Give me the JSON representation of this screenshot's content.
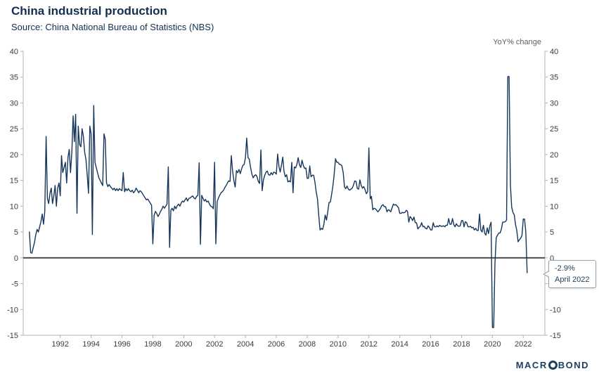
{
  "header": {
    "title": "China industrial production",
    "source": "Source: China National Bureau of Statistics (NBS)"
  },
  "chart": {
    "unit_label": "YoY% change"
  },
  "callout": {
    "value": "-2.9%",
    "date": "April 2022"
  },
  "branding": {
    "logo_left": "MACR",
    "logo_right": "BOND"
  },
  "chart_data": {
    "type": "line",
    "title": "China industrial production",
    "ylabel": "YoY% change",
    "xlabel": "",
    "ylim": [
      -15,
      40
    ],
    "xlim": [
      1989.6,
      2023.4
    ],
    "y_ticks": [
      -15,
      -10,
      -5,
      0,
      5,
      10,
      15,
      20,
      25,
      30,
      35,
      40
    ],
    "x_ticks": [
      1992,
      1994,
      1996,
      1998,
      2000,
      2002,
      2004,
      2006,
      2008,
      2010,
      2012,
      2014,
      2016,
      2018,
      2020,
      2022
    ],
    "grid": false,
    "legend_position": "none",
    "zero_line": true,
    "line_color": "#17365c",
    "zero_line_color": "#4d4d4d",
    "axis_color": "#b3b3b3",
    "series": [
      {
        "name": "China industrial production YoY% change",
        "frequency": "monthly",
        "start_year": 1990,
        "start_month": 1,
        "values": [
          5.0,
          1.0,
          0.9,
          2.0,
          3.0,
          4.5,
          5.5,
          5.0,
          6.0,
          7.0,
          8.5,
          6.5,
          9.0,
          23.5,
          11.5,
          10.5,
          12.5,
          13.5,
          10.5,
          12.0,
          14.0,
          10.0,
          13.5,
          14.5,
          12.0,
          19.8,
          16.5,
          17.5,
          18.5,
          14.5,
          19.5,
          21.0,
          16.5,
          20.5,
          27.5,
          22.5,
          27.8,
          8.6,
          25.5,
          22.0,
          21.5,
          25.0,
          23.5,
          20.5,
          19.0,
          16.0,
          12.5,
          25.5,
          24.0,
          4.5,
          29.5,
          18.5,
          17.5,
          16.5,
          15.5,
          15.0,
          14.5,
          14.0,
          24.0,
          23.0,
          14.5,
          13.8,
          14.2,
          13.8,
          13.5,
          13.2,
          13.5,
          13.0,
          13.4,
          13.0,
          13.4,
          13.2,
          13.0,
          16.5,
          12.8,
          13.4,
          13.0,
          13.4,
          13.0,
          12.8,
          13.1,
          12.6,
          12.9,
          13.5,
          13.1,
          12.6,
          13.0,
          12.8,
          12.4,
          12.0,
          11.6,
          11.2,
          11.4,
          11.0,
          10.6,
          10.2,
          2.7,
          8.2,
          9.0,
          8.6,
          8.0,
          8.4,
          9.0,
          9.4,
          10.0,
          9.6,
          10.0,
          10.4,
          17.6,
          2.0,
          9.2,
          9.6,
          9.1,
          10.0,
          9.5,
          10.1,
          10.4,
          10.0,
          10.6,
          11.0,
          10.8,
          11.2,
          11.6,
          11.0,
          11.5,
          11.6,
          11.8,
          12.0,
          11.6,
          11.4,
          11.9,
          12.1,
          18.4,
          2.6,
          12.1,
          11.5,
          11.0,
          11.3,
          10.8,
          11.0,
          10.4,
          10.0,
          9.9,
          9.5,
          18.5,
          2.7,
          10.9,
          11.6,
          12.1,
          12.6,
          12.8,
          13.1,
          13.6,
          14.0,
          14.5,
          14.9,
          14.8,
          19.8,
          16.9,
          14.9,
          13.7,
          16.9,
          16.5,
          17.1,
          16.3,
          17.2,
          17.9,
          18.1,
          19.4,
          23.2,
          19.4,
          19.1,
          17.5,
          16.2,
          15.5,
          15.9,
          16.1,
          15.7,
          14.8,
          14.4,
          20.9,
          13.0,
          15.1,
          16.0,
          16.6,
          16.8,
          16.1,
          16.0,
          16.5,
          16.1,
          16.6,
          16.5,
          16.2,
          20.1,
          17.8,
          16.6,
          17.9,
          19.5,
          16.7,
          15.7,
          16.1,
          14.7,
          14.9,
          14.7,
          18.5,
          12.6,
          17.6,
          17.4,
          18.1,
          19.4,
          18.0,
          17.5,
          18.9,
          17.9,
          17.3,
          17.4,
          15.4,
          15.4,
          17.8,
          15.7,
          16.0,
          16.0,
          14.7,
          12.8,
          11.4,
          8.2,
          5.4,
          5.7,
          5.5,
          6.5,
          8.3,
          7.3,
          8.9,
          10.7,
          10.8,
          12.3,
          13.9,
          16.1,
          19.2,
          18.5,
          18.5,
          18.1,
          18.1,
          17.8,
          16.5,
          13.7,
          13.4,
          13.9,
          13.3,
          13.1,
          13.3,
          13.5,
          14.1,
          14.9,
          14.8,
          13.4,
          13.3,
          15.1,
          14.0,
          13.5,
          13.8,
          13.2,
          12.4,
          12.8,
          21.3,
          11.4,
          11.9,
          9.3,
          9.6,
          9.5,
          9.2,
          8.9,
          9.2,
          9.6,
          10.1,
          10.3,
          9.9,
          9.9,
          8.9,
          9.3,
          9.2,
          8.9,
          9.7,
          10.4,
          10.2,
          10.3,
          10.0,
          9.7,
          8.6,
          8.6,
          8.8,
          8.7,
          8.8,
          9.2,
          9.0,
          6.9,
          8.0,
          7.7,
          7.2,
          7.9,
          6.8,
          6.8,
          5.6,
          5.9,
          6.1,
          6.8,
          6.0,
          6.1,
          5.7,
          5.6,
          6.2,
          5.9,
          5.4,
          5.4,
          6.8,
          6.0,
          6.0,
          6.2,
          6.0,
          6.3,
          6.1,
          6.1,
          6.2,
          6.0,
          6.3,
          6.3,
          7.6,
          6.5,
          6.5,
          7.6,
          6.4,
          6.0,
          6.6,
          6.2,
          6.1,
          6.2,
          7.2,
          7.2,
          6.0,
          7.0,
          6.8,
          6.0,
          6.0,
          6.1,
          5.8,
          5.9,
          5.4,
          5.7,
          5.3,
          5.3,
          8.5,
          5.4,
          5.0,
          6.3,
          4.8,
          4.4,
          5.8,
          4.7,
          6.2,
          6.9,
          -13.5,
          -13.5,
          -1.1,
          3.9,
          4.4,
          4.8,
          4.8,
          5.6,
          6.9,
          6.9,
          7.0,
          7.3,
          35.1,
          35.1,
          14.1,
          9.8,
          8.8,
          8.3,
          6.4,
          5.3,
          3.1,
          3.5,
          3.8,
          4.3,
          7.5,
          7.5,
          5.0,
          -2.9
        ]
      }
    ],
    "annotations": [
      {
        "label": "-2.9% April 2022",
        "x": 2022.25,
        "y": -2.9
      }
    ]
  }
}
